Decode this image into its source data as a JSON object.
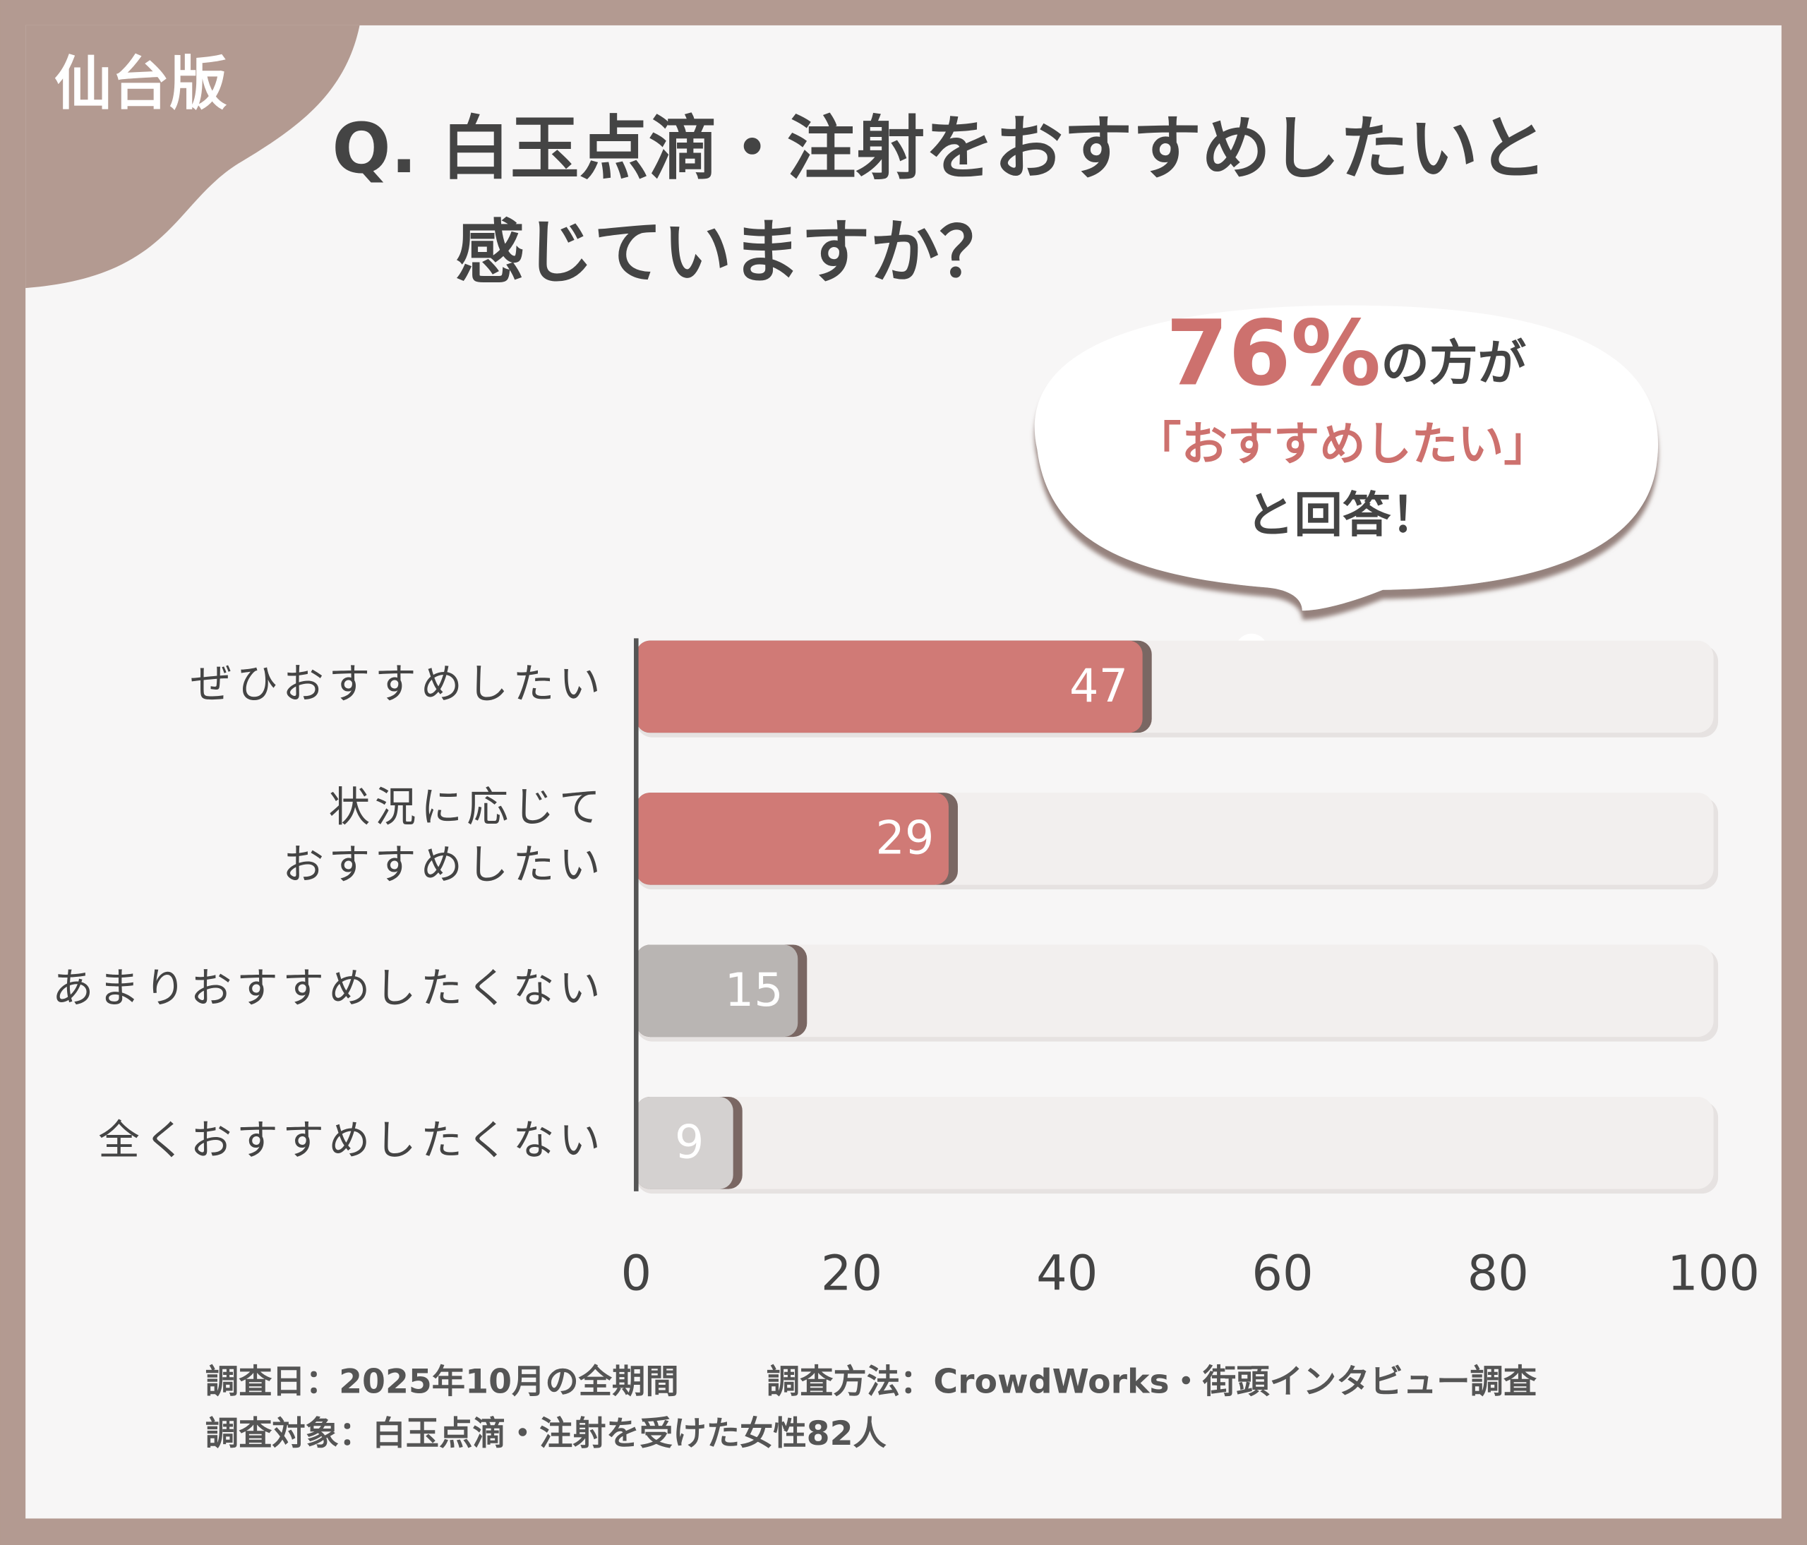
{
  "badge": "仙台版",
  "chart_data": {
    "type": "bar",
    "orientation": "horizontal",
    "title": [
      "Q. 白玉点滴・注射をおすすめしたいと",
      "感じていますか？"
    ],
    "categories": [
      "ぜひおすすめしたい",
      "状況に応じて\nおすすめしたい",
      "あまりおすすめしたくない",
      "全くおすすめしたくない"
    ],
    "values": [
      47,
      29,
      15,
      9
    ],
    "colors": [
      "#d07a76",
      "#d07a76",
      "#b9b5b3",
      "#d4d1d0"
    ],
    "xlim": [
      0,
      100
    ],
    "xticks": [
      0,
      20,
      40,
      60,
      80,
      100
    ],
    "grid": false
  },
  "callout": {
    "highlight": "76%",
    "rest": "の方が",
    "quote": "「おすすめしたい」",
    "end": "と回答！"
  },
  "footnotes": {
    "date": "調査日：2025年10月の全期間",
    "method": "調査方法：CrowdWorks・街頭インタビュー調査",
    "target": "調査対象：白玉点滴・注射を受けた女性82人"
  }
}
